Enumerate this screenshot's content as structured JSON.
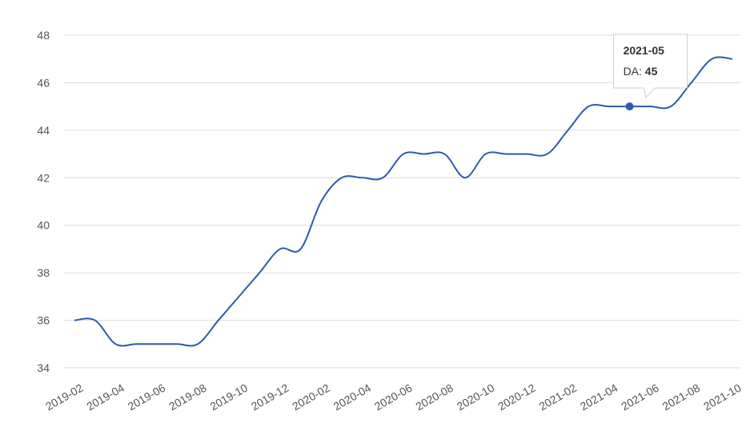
{
  "chart_data": {
    "type": "line",
    "categories": [
      "2019-02",
      null,
      "2019-04",
      null,
      "2019-06",
      null,
      "2019-08",
      null,
      "2019-10",
      null,
      "2019-12",
      null,
      "2020-02",
      null,
      "2020-04",
      null,
      "2020-06",
      null,
      "2020-08",
      null,
      "2020-10",
      null,
      "2020-12",
      null,
      "2021-02",
      null,
      "2021-04",
      null,
      "2021-06",
      null,
      "2021-08",
      null,
      "2021-10"
    ],
    "series": [
      {
        "name": "DA",
        "color": "#2a5caa",
        "values": [
          36,
          36,
          35,
          35,
          35,
          35,
          35,
          36,
          37,
          38,
          39,
          39,
          41,
          42,
          42,
          42,
          43,
          43,
          43,
          42,
          43,
          43,
          43,
          43,
          44,
          45,
          45,
          45,
          45,
          45,
          46,
          47,
          47
        ]
      }
    ],
    "ylim": [
      34,
      48
    ],
    "yticks": [
      34,
      36,
      38,
      40,
      42,
      44,
      46,
      48
    ],
    "grid": true,
    "tooltip": {
      "index": 27,
      "title": "2021-05"
    }
  }
}
